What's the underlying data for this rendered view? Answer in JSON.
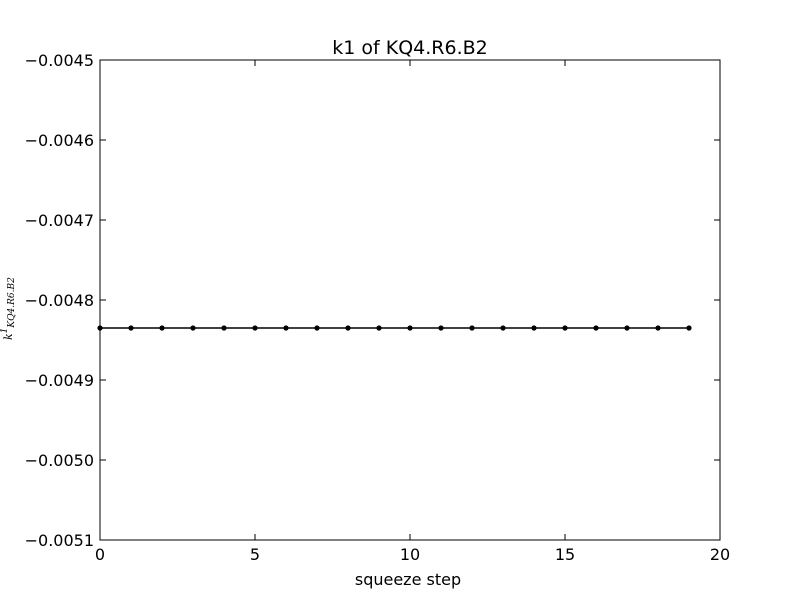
{
  "chart_data": {
    "type": "line",
    "title": "k1 of KQ4.R6.B2",
    "xlabel": "squeeze step",
    "ylabel": "k1 KQ4.R6.B2",
    "ylabel_main": "k",
    "ylabel_sup": "1",
    "ylabel_sub": "KQ4.R6.B2",
    "xlim": [
      0,
      20
    ],
    "ylim": [
      -0.0051,
      -0.0045
    ],
    "xticks": [
      0,
      5,
      10,
      15,
      20
    ],
    "xtick_labels": [
      "0",
      "5",
      "10",
      "15",
      "20"
    ],
    "yticks": [
      -0.0045,
      -0.0046,
      -0.0047,
      -0.0048,
      -0.0049,
      -0.005,
      -0.0051
    ],
    "ytick_labels": [
      "−0.0045",
      "−0.0046",
      "−0.0047",
      "−0.0048",
      "−0.0049",
      "−0.0050",
      "−0.0051"
    ],
    "grid": false,
    "series": [
      {
        "color": "#000000",
        "marker": "dot",
        "x": [
          0,
          1,
          2,
          3,
          4,
          5,
          6,
          7,
          8,
          9,
          10,
          11,
          12,
          13,
          14,
          15,
          16,
          17,
          18,
          19
        ],
        "y": [
          -0.004835,
          -0.004835,
          -0.004835,
          -0.004835,
          -0.004835,
          -0.004835,
          -0.004835,
          -0.004835,
          -0.004835,
          -0.004835,
          -0.004835,
          -0.004835,
          -0.004835,
          -0.004835,
          -0.004835,
          -0.004835,
          -0.004835,
          -0.004835,
          -0.004835,
          -0.004835
        ]
      }
    ]
  }
}
